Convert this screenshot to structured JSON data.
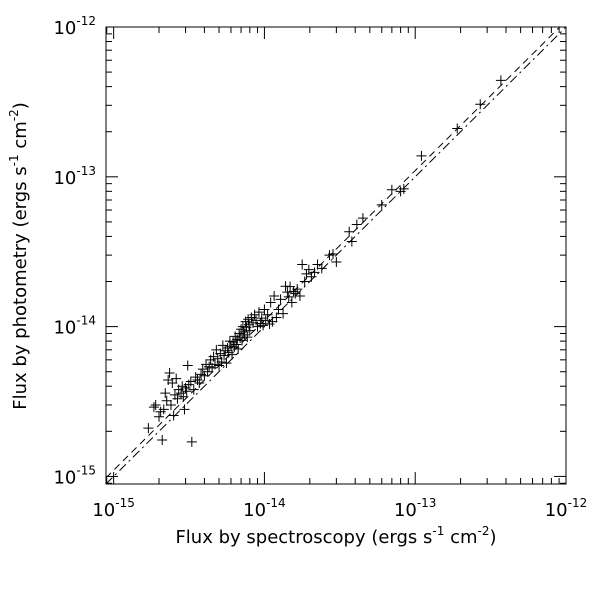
{
  "chart_data": {
    "type": "scatter",
    "title": "",
    "xlabel": "Flux by spectroscopy (ergs s^-1 cm^-2)",
    "ylabel": "Flux by photometry (ergs s^-1 cm^-2)",
    "xscale": "log",
    "yscale": "log",
    "xlim": [
      8.9e-16,
      1e-12
    ],
    "ylim": [
      8.9e-16,
      1e-12
    ],
    "xticks": [
      1e-15,
      1e-14,
      1e-13,
      1e-12
    ],
    "yticks": [
      1e-15,
      1e-14,
      1e-13,
      1e-12
    ],
    "xtick_labels": [
      {
        "base": "10",
        "exp": "-15"
      },
      {
        "base": "10",
        "exp": "-14"
      },
      {
        "base": "10",
        "exp": "-13"
      },
      {
        "base": "10",
        "exp": "-12"
      }
    ],
    "ytick_labels": [
      {
        "base": "10",
        "exp": "-15"
      },
      {
        "base": "10",
        "exp": "-14"
      },
      {
        "base": "10",
        "exp": "-13"
      },
      {
        "base": "10",
        "exp": "-12"
      }
    ],
    "marker": "plus",
    "color": "#000000",
    "lines": [
      {
        "style": "dashed",
        "slope": 1.0,
        "factor": 1.1
      },
      {
        "style": "dashdot",
        "slope": 1.0,
        "factor": 1.0
      }
    ],
    "points": [
      [
        1.7e-15,
        2.1e-15
      ],
      [
        1.85e-15,
        2.9e-15
      ],
      [
        1.9e-15,
        3e-15
      ],
      [
        2e-15,
        2.5e-15
      ],
      [
        2.05e-15,
        2.7e-15
      ],
      [
        2.1e-15,
        1.75e-15
      ],
      [
        2.15e-15,
        2.8e-15
      ],
      [
        2.2e-15,
        3.6e-15
      ],
      [
        2.25e-15,
        3.2e-15
      ],
      [
        2.3e-15,
        4.4e-15
      ],
      [
        2.35e-15,
        4.9e-15
      ],
      [
        2.4e-15,
        3e-15
      ],
      [
        2.45e-15,
        4.2e-15
      ],
      [
        2.5e-15,
        2.55e-15
      ],
      [
        2.55e-15,
        3.5e-15
      ],
      [
        2.6e-15,
        4.5e-15
      ],
      [
        2.65e-15,
        3.3e-15
      ],
      [
        2.7e-15,
        3.8e-15
      ],
      [
        2.8e-15,
        3.6e-15
      ],
      [
        2.85e-15,
        4e-15
      ],
      [
        2.9e-15,
        3.4e-15
      ],
      [
        2.95e-15,
        2.8e-15
      ],
      [
        3e-15,
        3.9e-15
      ],
      [
        3.05e-15,
        3.7e-15
      ],
      [
        3.1e-15,
        5.5e-15
      ],
      [
        3.15e-15,
        4.1e-15
      ],
      [
        3.25e-15,
        4.3e-15
      ],
      [
        3.3e-15,
        1.7e-15
      ],
      [
        3.4e-15,
        3.8e-15
      ],
      [
        3.5e-15,
        4.6e-15
      ],
      [
        3.6e-15,
        4.4e-15
      ],
      [
        3.7e-15,
        4.2e-15
      ],
      [
        3.8e-15,
        4.8e-15
      ],
      [
        3.9e-15,
        5.2e-15
      ],
      [
        4e-15,
        4.7e-15
      ],
      [
        4.1e-15,
        5.6e-15
      ],
      [
        4.2e-15,
        5e-15
      ],
      [
        4.3e-15,
        5.4e-15
      ],
      [
        4.4e-15,
        6e-15
      ],
      [
        4.5e-15,
        5.3e-15
      ],
      [
        4.6e-15,
        6.3e-15
      ],
      [
        4.7e-15,
        5.6e-15
      ],
      [
        4.8e-15,
        7e-15
      ],
      [
        4.9e-15,
        6.1e-15
      ],
      [
        5e-15,
        5.5e-15
      ],
      [
        5.1e-15,
        6.6e-15
      ],
      [
        5.2e-15,
        5.8e-15
      ],
      [
        5.3e-15,
        7.5e-15
      ],
      [
        5.4e-15,
        6.4e-15
      ],
      [
        5.5e-15,
        6.9e-15
      ],
      [
        5.6e-15,
        5.7e-15
      ],
      [
        5.7e-15,
        7.2e-15
      ],
      [
        5.8e-15,
        6.7e-15
      ],
      [
        5.9e-15,
        8e-15
      ],
      [
        6e-15,
        7.4e-15
      ],
      [
        6.1e-15,
        6.5e-15
      ],
      [
        6.2e-15,
        7.9e-15
      ],
      [
        6.3e-15,
        7.3e-15
      ],
      [
        6.4e-15,
        8.6e-15
      ],
      [
        6.5e-15,
        7.6e-15
      ],
      [
        6.6e-15,
        8.2e-15
      ],
      [
        6.7e-15,
        7.1e-15
      ],
      [
        6.8e-15,
        9e-15
      ],
      [
        6.9e-15,
        8.4e-15
      ],
      [
        7e-15,
        9.6e-15
      ],
      [
        7.1e-15,
        8.1e-15
      ],
      [
        7.2e-15,
        1e-14
      ],
      [
        7.3e-15,
        9.2e-15
      ],
      [
        7.4e-15,
        8.8e-15
      ],
      [
        7.5e-15,
        1.08e-14
      ],
      [
        7.6e-15,
        9.9e-15
      ],
      [
        7.7e-15,
        8.5e-15
      ],
      [
        7.8e-15,
        1.12e-14
      ],
      [
        7.9e-15,
        1.03e-14
      ],
      [
        8e-15,
        9.4e-15
      ],
      [
        8.2e-15,
        1.15e-14
      ],
      [
        8.4e-15,
        1.06e-14
      ],
      [
        8.6e-15,
        1.2e-14
      ],
      [
        8.8e-15,
        1.1e-14
      ],
      [
        9e-15,
        1e-14
      ],
      [
        9.2e-15,
        1.25e-14
      ],
      [
        9.4e-15,
        1.05e-14
      ],
      [
        9.6e-15,
        1.14e-14
      ],
      [
        9.8e-15,
        1.02e-14
      ],
      [
        1e-14,
        1.3e-14
      ],
      [
        1.02e-14,
        1.1e-14
      ],
      [
        1.05e-14,
        1.2e-14
      ],
      [
        1.08e-14,
        1.04e-14
      ],
      [
        1.1e-14,
        1.45e-14
      ],
      [
        1.13e-14,
        1.08e-14
      ],
      [
        1.16e-14,
        1.6e-14
      ],
      [
        1.2e-14,
        1.15e-14
      ],
      [
        1.24e-14,
        1.3e-14
      ],
      [
        1.28e-14,
        1.52e-14
      ],
      [
        1.33e-14,
        1.22e-14
      ],
      [
        1.38e-14,
        1.86e-14
      ],
      [
        1.42e-14,
        1.7e-14
      ],
      [
        1.45e-14,
        1.58e-14
      ],
      [
        1.48e-14,
        1.85e-14
      ],
      [
        1.52e-14,
        1.45e-14
      ],
      [
        1.56e-14,
        1.72e-14
      ],
      [
        1.6e-14,
        1.66e-14
      ],
      [
        1.65e-14,
        1.78e-14
      ],
      [
        1.72e-14,
        1.6e-14
      ],
      [
        1.78e-14,
        2.6e-14
      ],
      [
        1.85e-14,
        2e-14
      ],
      [
        1.9e-14,
        2.25e-14
      ],
      [
        1.97e-14,
        2.4e-14
      ],
      [
        2.05e-14,
        2.15e-14
      ],
      [
        2.15e-14,
        2.3e-14
      ],
      [
        2.25e-14,
        2.6e-14
      ],
      [
        2.4e-14,
        2.45e-14
      ],
      [
        2.7e-14,
        3e-14
      ],
      [
        2.85e-14,
        3.05e-14
      ],
      [
        3e-14,
        2.7e-14
      ],
      [
        3.65e-14,
        4.3e-14
      ],
      [
        3.8e-14,
        3.7e-14
      ],
      [
        4.1e-14,
        4.8e-14
      ],
      [
        4.5e-14,
        5.3e-14
      ],
      [
        6e-14,
        6.5e-14
      ],
      [
        7e-14,
        8.2e-14
      ],
      [
        8e-14,
        8e-14
      ],
      [
        8.4e-14,
        8.3e-14
      ],
      [
        1.1e-13,
        1.38e-13
      ],
      [
        1.9e-13,
        2.1e-13
      ],
      [
        2.7e-13,
        3.05e-13
      ],
      [
        3.7e-13,
        4.4e-13
      ]
    ]
  }
}
